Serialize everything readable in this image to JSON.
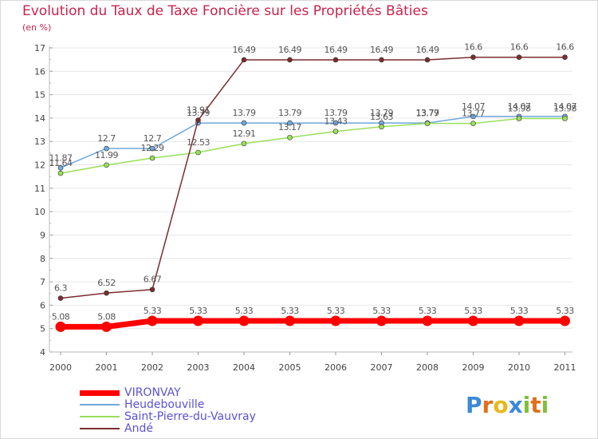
{
  "chart_data": {
    "type": "line",
    "title": "Evolution du Taux de Taxe Foncière sur les Propriétés Bâties",
    "ylabel": "(en %)",
    "xlabel": "",
    "ylim": [
      4,
      17
    ],
    "yticks": [
      4,
      5,
      6,
      7,
      8,
      9,
      10,
      11,
      12,
      13,
      14,
      15,
      16,
      17
    ],
    "categories": [
      "2000",
      "2001",
      "2002",
      "2003",
      "2004",
      "2005",
      "2006",
      "2007",
      "2008",
      "2009",
      "2010",
      "2011"
    ],
    "series": [
      {
        "name": "VIRONVAY",
        "color": "#ff0000",
        "values": [
          5.08,
          5.08,
          5.33,
          5.33,
          5.33,
          5.33,
          5.33,
          5.33,
          5.33,
          5.33,
          5.33,
          5.33
        ],
        "labels": [
          "5.08",
          "5.08",
          "5.33",
          "5.33",
          "5.33",
          "5.33",
          "5.33",
          "5.33",
          "5.33",
          "5.33",
          "5.33",
          "5.33"
        ]
      },
      {
        "name": "Heudebouville",
        "color": "#6fa8dc",
        "values": [
          11.87,
          12.7,
          12.7,
          13.79,
          13.79,
          13.79,
          13.79,
          13.79,
          13.79,
          14.07,
          14.07,
          14.07
        ],
        "labels": [
          "11.87",
          "12.7",
          "12.7",
          "13.79",
          "13.79",
          "13.79",
          "13.79",
          "13.79",
          "13.79",
          "14.07",
          "14.07",
          "14.07"
        ]
      },
      {
        "name": "Saint-Pierre-du-Vauvray",
        "color": "#99e05a",
        "values": [
          11.64,
          11.99,
          12.29,
          12.53,
          12.91,
          13.17,
          13.43,
          13.63,
          13.77,
          13.77,
          13.98,
          13.98
        ],
        "labels": [
          "11.64",
          "11.99",
          "12.29",
          "12.53",
          "12.91",
          "13.17",
          "13.43",
          "13.63",
          "13.77",
          "13.77",
          "13.98",
          "13.98"
        ]
      },
      {
        "name": "Andé",
        "color": "#7b2d2d",
        "values": [
          6.3,
          6.52,
          6.67,
          13.91,
          16.49,
          16.49,
          16.49,
          16.49,
          16.49,
          16.6,
          16.6,
          16.6
        ],
        "labels": [
          "6.3",
          "6.52",
          "6.67",
          "13.91",
          "16.49",
          "16.49",
          "16.49",
          "16.49",
          "16.49",
          "16.6",
          "16.6",
          "16.6"
        ]
      }
    ]
  },
  "logo": {
    "letters": [
      "P",
      "r",
      "o",
      "x",
      "i",
      "t",
      "i"
    ],
    "colors": [
      "#3a8ad8",
      "#e0701c",
      "#e8b81c",
      "#3a8ad8",
      "#7fbf3a",
      "#e0701c",
      "#7fbf3a"
    ]
  }
}
